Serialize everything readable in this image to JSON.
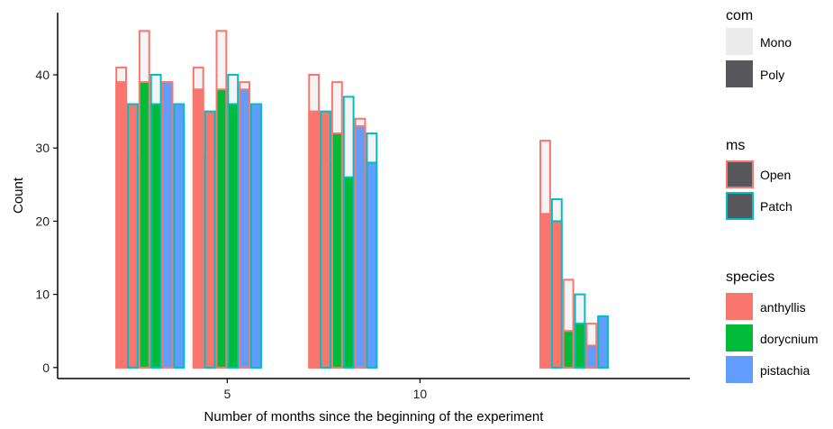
{
  "chart_data": {
    "type": "bar",
    "title": "",
    "xlabel": "Number of months since the beginning of the experiment",
    "ylabel": "Count",
    "x_ticks": [
      5,
      10
    ],
    "y_ticks": [
      0,
      10,
      20,
      30,
      40
    ],
    "xlim": [
      0.6,
      17.0
    ],
    "ylim": [
      -1.5,
      48.5
    ],
    "grid": false,
    "legend_position": "right",
    "colors": {
      "anthyllis": "#F8766D",
      "dorycnium": "#00BA38",
      "pistachia": "#619CFF",
      "Open": "#F8766D",
      "Patch": "#00BFC4",
      "Mono": "#EBEBEB",
      "Poly": "#58585C"
    },
    "legend": {
      "com": {
        "title": "com",
        "items": [
          "Mono",
          "Poly"
        ]
      },
      "ms": {
        "title": "ms",
        "items": [
          "Open",
          "Patch"
        ]
      },
      "species": {
        "title": "species",
        "items": [
          "anthyllis",
          "dorycnium",
          "pistachia"
        ]
      }
    },
    "series": [
      {
        "month": 3,
        "species": "anthyllis",
        "ms": "Open",
        "com": "Mono",
        "value": 41
      },
      {
        "month": 3,
        "species": "anthyllis",
        "ms": "Open",
        "com": "Poly",
        "value": 39
      },
      {
        "month": 3,
        "species": "anthyllis",
        "ms": "Patch",
        "com": "Mono",
        "value": 29
      },
      {
        "month": 3,
        "species": "anthyllis",
        "ms": "Patch",
        "com": "Poly",
        "value": 36
      },
      {
        "month": 3,
        "species": "dorycnium",
        "ms": "Open",
        "com": "Mono",
        "value": 46
      },
      {
        "month": 3,
        "species": "dorycnium",
        "ms": "Open",
        "com": "Poly",
        "value": 39
      },
      {
        "month": 3,
        "species": "dorycnium",
        "ms": "Patch",
        "com": "Mono",
        "value": 40
      },
      {
        "month": 3,
        "species": "dorycnium",
        "ms": "Patch",
        "com": "Poly",
        "value": 36
      },
      {
        "month": 3,
        "species": "pistachia",
        "ms": "Open",
        "com": "Mono",
        "value": 39
      },
      {
        "month": 3,
        "species": "pistachia",
        "ms": "Open",
        "com": "Poly",
        "value": 39
      },
      {
        "month": 3,
        "species": "pistachia",
        "ms": "Patch",
        "com": "Mono",
        "value": 34
      },
      {
        "month": 3,
        "species": "pistachia",
        "ms": "Patch",
        "com": "Poly",
        "value": 36
      },
      {
        "month": 5,
        "species": "anthyllis",
        "ms": "Open",
        "com": "Mono",
        "value": 41
      },
      {
        "month": 5,
        "species": "anthyllis",
        "ms": "Open",
        "com": "Poly",
        "value": 38
      },
      {
        "month": 5,
        "species": "anthyllis",
        "ms": "Patch",
        "com": "Mono",
        "value": 29
      },
      {
        "month": 5,
        "species": "anthyllis",
        "ms": "Patch",
        "com": "Poly",
        "value": 35
      },
      {
        "month": 5,
        "species": "dorycnium",
        "ms": "Open",
        "com": "Mono",
        "value": 46
      },
      {
        "month": 5,
        "species": "dorycnium",
        "ms": "Open",
        "com": "Poly",
        "value": 38
      },
      {
        "month": 5,
        "species": "dorycnium",
        "ms": "Patch",
        "com": "Mono",
        "value": 40
      },
      {
        "month": 5,
        "species": "dorycnium",
        "ms": "Patch",
        "com": "Poly",
        "value": 36
      },
      {
        "month": 5,
        "species": "pistachia",
        "ms": "Open",
        "com": "Mono",
        "value": 39
      },
      {
        "month": 5,
        "species": "pistachia",
        "ms": "Open",
        "com": "Poly",
        "value": 38
      },
      {
        "month": 5,
        "species": "pistachia",
        "ms": "Patch",
        "com": "Mono",
        "value": 36
      },
      {
        "month": 5,
        "species": "pistachia",
        "ms": "Patch",
        "com": "Poly",
        "value": 36
      },
      {
        "month": 8,
        "species": "anthyllis",
        "ms": "Open",
        "com": "Mono",
        "value": 40
      },
      {
        "month": 8,
        "species": "anthyllis",
        "ms": "Open",
        "com": "Poly",
        "value": 35
      },
      {
        "month": 8,
        "species": "anthyllis",
        "ms": "Patch",
        "com": "Mono",
        "value": 28
      },
      {
        "month": 8,
        "species": "anthyllis",
        "ms": "Patch",
        "com": "Poly",
        "value": 35
      },
      {
        "month": 8,
        "species": "dorycnium",
        "ms": "Open",
        "com": "Mono",
        "value": 39
      },
      {
        "month": 8,
        "species": "dorycnium",
        "ms": "Open",
        "com": "Poly",
        "value": 32
      },
      {
        "month": 8,
        "species": "dorycnium",
        "ms": "Patch",
        "com": "Mono",
        "value": 37
      },
      {
        "month": 8,
        "species": "dorycnium",
        "ms": "Patch",
        "com": "Poly",
        "value": 26
      },
      {
        "month": 8,
        "species": "pistachia",
        "ms": "Open",
        "com": "Mono",
        "value": 34
      },
      {
        "month": 8,
        "species": "pistachia",
        "ms": "Open",
        "com": "Poly",
        "value": 33
      },
      {
        "month": 8,
        "species": "pistachia",
        "ms": "Patch",
        "com": "Mono",
        "value": 32
      },
      {
        "month": 8,
        "species": "pistachia",
        "ms": "Patch",
        "com": "Poly",
        "value": 28
      },
      {
        "month": 14,
        "species": "anthyllis",
        "ms": "Open",
        "com": "Mono",
        "value": 31
      },
      {
        "month": 14,
        "species": "anthyllis",
        "ms": "Open",
        "com": "Poly",
        "value": 21
      },
      {
        "month": 14,
        "species": "anthyllis",
        "ms": "Patch",
        "com": "Mono",
        "value": 23
      },
      {
        "month": 14,
        "species": "anthyllis",
        "ms": "Patch",
        "com": "Poly",
        "value": 20
      },
      {
        "month": 14,
        "species": "dorycnium",
        "ms": "Open",
        "com": "Mono",
        "value": 12
      },
      {
        "month": 14,
        "species": "dorycnium",
        "ms": "Open",
        "com": "Poly",
        "value": 5
      },
      {
        "month": 14,
        "species": "dorycnium",
        "ms": "Patch",
        "com": "Mono",
        "value": 10
      },
      {
        "month": 14,
        "species": "dorycnium",
        "ms": "Patch",
        "com": "Poly",
        "value": 6
      },
      {
        "month": 14,
        "species": "pistachia",
        "ms": "Open",
        "com": "Mono",
        "value": 6
      },
      {
        "month": 14,
        "species": "pistachia",
        "ms": "Open",
        "com": "Poly",
        "value": 3
      },
      {
        "month": 14,
        "species": "pistachia",
        "ms": "Patch",
        "com": "Mono",
        "value": 7
      },
      {
        "month": 14,
        "species": "pistachia",
        "ms": "Patch",
        "com": "Poly",
        "value": 7
      }
    ]
  }
}
